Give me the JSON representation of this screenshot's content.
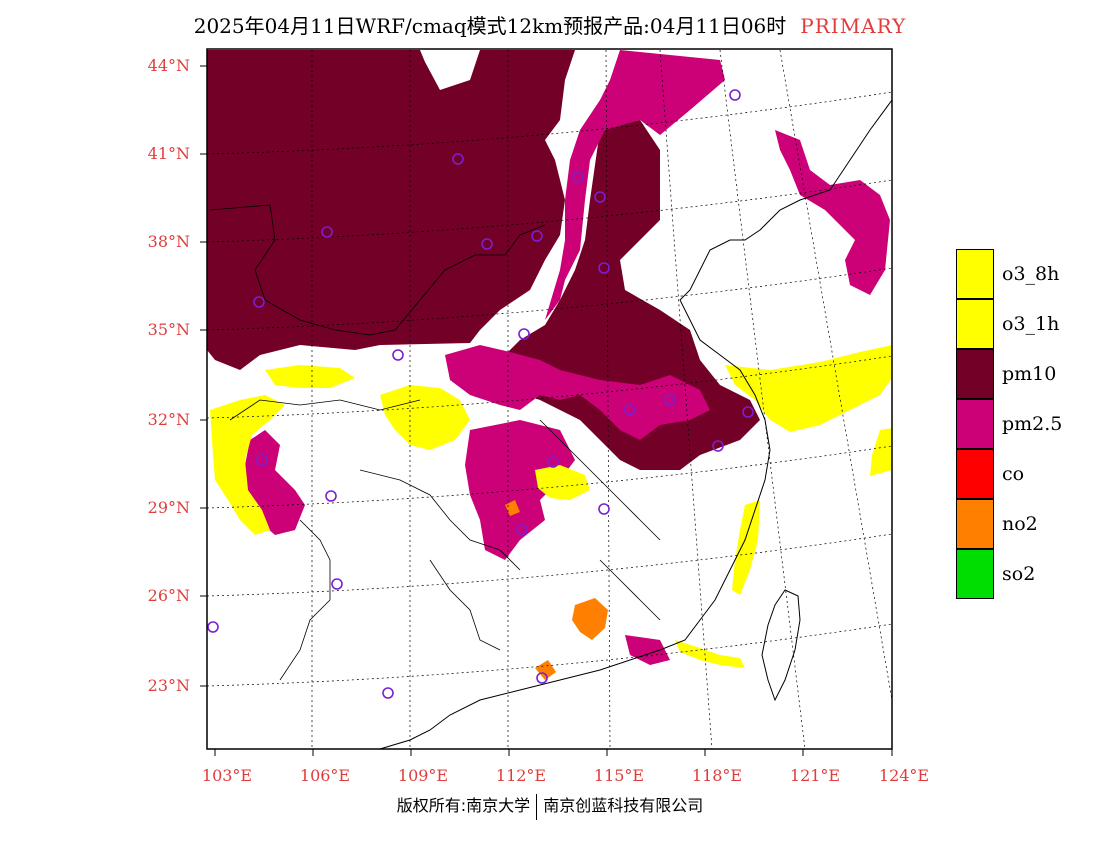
{
  "title": {
    "main": "2025年04月11日WRF/cmaq模式12km预报产品:04月11日06时",
    "tag": "PRIMARY"
  },
  "axes": {
    "lat_labels": [
      "44°N",
      "41°N",
      "38°N",
      "35°N",
      "32°N",
      "29°N",
      "26°N",
      "23°N"
    ],
    "lon_labels": [
      "103°E",
      "106°E",
      "109°E",
      "112°E",
      "115°E",
      "118°E",
      "121°E",
      "124°E"
    ]
  },
  "legend": [
    {
      "label": "o3_8h",
      "color": "#ffff00"
    },
    {
      "label": "o3_1h",
      "color": "#ffff00"
    },
    {
      "label": "pm10",
      "color": "#730026"
    },
    {
      "label": "pm2.5",
      "color": "#cc0077"
    },
    {
      "label": "co",
      "color": "#ff0000"
    },
    {
      "label": "no2",
      "color": "#ff8000"
    },
    {
      "label": "so2",
      "color": "#00dd00"
    }
  ],
  "copyright": {
    "left": "版权所有:南京大学",
    "right": "南京创蓝科技有限公司"
  },
  "colors": {
    "pm10": "#730026",
    "pm25": "#cc0077",
    "o3": "#ffff00",
    "no2": "#ff8000",
    "site_marker": "#7a1fd1",
    "axis_label": "#e03c3c"
  }
}
